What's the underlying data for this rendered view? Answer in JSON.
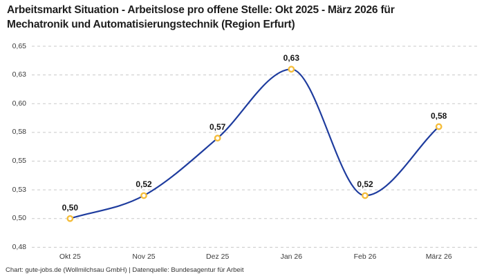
{
  "title_lines": [
    "Arbeitsmarkt Situation - Arbeitslose pro offene Stelle: Okt 2025 - März 2026 für",
    "Mechatronik und Automatisierungstechnik (Region Erfurt)"
  ],
  "footer": "Chart: gute-jobs.de (Wollmilchsau GmbH) | Datenquelle: Bundesagentur für Arbeit",
  "colors": {
    "line": "#1e3c9e",
    "marker_ring": "#f5bd3a",
    "marker_fill": "#ffffff",
    "grid": "#c8c8c8",
    "title_text": "#1d1d1d",
    "axis_text": "#3a3a3a",
    "value_label_text": "#141414",
    "footer_text": "#333333",
    "background": "#ffffff"
  },
  "chart_data": {
    "type": "line",
    "title": "Arbeitsmarkt Situation - Arbeitslose pro offene Stelle: Okt 2025 - März 2026 für Mechatronik und Automatisierungstechnik (Region Erfurt)",
    "categories": [
      "Okt 25",
      "Nov 25",
      "Dez 25",
      "Jan 26",
      "Feb 26",
      "März 26"
    ],
    "values": [
      0.5,
      0.52,
      0.57,
      0.63,
      0.52,
      0.58
    ],
    "value_labels": [
      "0,50",
      "0,52",
      "0,57",
      "0,63",
      "0,52",
      "0,58"
    ],
    "xlabel": "",
    "ylabel": "",
    "ylim": [
      0.475,
      0.65
    ],
    "yticks": {
      "values": [
        0.475,
        0.5,
        0.525,
        0.55,
        0.575,
        0.6,
        0.625,
        0.65
      ],
      "labels": [
        "0,48",
        "0,50",
        "0,53",
        "0,55",
        "0,58",
        "0,60",
        "0,63",
        "0,65"
      ]
    },
    "grid": "horizontal-dashed",
    "legend": "none",
    "line_style": "smooth-monotone",
    "marker": "open-circle"
  }
}
